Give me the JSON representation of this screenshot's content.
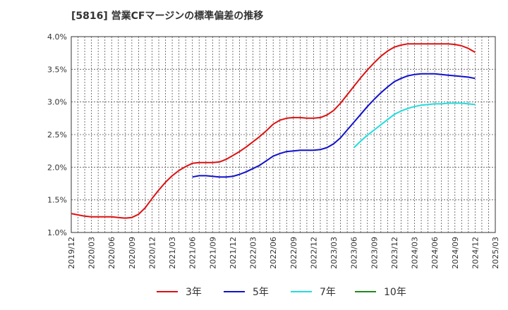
{
  "title": "[5816]  営業CFマージンの標準偏差の推移",
  "chart_data": {
    "type": "line",
    "title": "[5816]  営業CFマージンの標準偏差の推移",
    "xlabel": "",
    "ylabel": "",
    "ylim": [
      1.0,
      4.0
    ],
    "y_ticks": [
      "1.0%",
      "1.5%",
      "2.0%",
      "2.5%",
      "3.0%",
      "3.5%",
      "4.0%"
    ],
    "x_ticks": [
      "2019/12",
      "2020/03",
      "2020/06",
      "2020/09",
      "2020/12",
      "2021/03",
      "2021/06",
      "2021/09",
      "2021/12",
      "2022/03",
      "2022/06",
      "2022/09",
      "2022/12",
      "2023/03",
      "2023/06",
      "2023/09",
      "2023/12",
      "2024/03",
      "2024/06",
      "2024/09",
      "2024/12",
      "2025/03"
    ],
    "grid": true,
    "legend_position": "bottom",
    "series": [
      {
        "name": "3年",
        "color": "#dd1111",
        "x": [
          "2019/12",
          "2020/01",
          "2020/02",
          "2020/03",
          "2020/04",
          "2020/05",
          "2020/06",
          "2020/07",
          "2020/08",
          "2020/09",
          "2020/10",
          "2020/11",
          "2020/12",
          "2021/01",
          "2021/02",
          "2021/03",
          "2021/04",
          "2021/05",
          "2021/06",
          "2021/07",
          "2021/08",
          "2021/09",
          "2021/10",
          "2021/11",
          "2021/12",
          "2022/01",
          "2022/02",
          "2022/03",
          "2022/04",
          "2022/05",
          "2022/06",
          "2022/07",
          "2022/08",
          "2022/09",
          "2022/10",
          "2022/11",
          "2022/12",
          "2023/01",
          "2023/02",
          "2023/03",
          "2023/04",
          "2023/05",
          "2023/06",
          "2023/07",
          "2023/08",
          "2023/09",
          "2023/10",
          "2023/11",
          "2023/12",
          "2024/01",
          "2024/02",
          "2024/03",
          "2024/04",
          "2024/05",
          "2024/06",
          "2024/07",
          "2024/08",
          "2024/09",
          "2024/10",
          "2024/11",
          "2024/12"
        ],
        "values": [
          1.29,
          1.27,
          1.25,
          1.24,
          1.24,
          1.24,
          1.24,
          1.23,
          1.22,
          1.23,
          1.28,
          1.38,
          1.52,
          1.65,
          1.77,
          1.87,
          1.95,
          2.01,
          2.06,
          2.07,
          2.07,
          2.07,
          2.08,
          2.12,
          2.18,
          2.24,
          2.31,
          2.39,
          2.47,
          2.56,
          2.66,
          2.72,
          2.75,
          2.76,
          2.76,
          2.75,
          2.75,
          2.76,
          2.8,
          2.87,
          2.98,
          3.11,
          3.24,
          3.37,
          3.49,
          3.6,
          3.7,
          3.78,
          3.84,
          3.87,
          3.89,
          3.89,
          3.89,
          3.89,
          3.89,
          3.89,
          3.89,
          3.88,
          3.86,
          3.82,
          3.76
        ]
      },
      {
        "name": "5年",
        "color": "#1111cc",
        "x": [
          "2021/06",
          "2021/07",
          "2021/08",
          "2021/09",
          "2021/10",
          "2021/11",
          "2021/12",
          "2022/01",
          "2022/02",
          "2022/03",
          "2022/04",
          "2022/05",
          "2022/06",
          "2022/07",
          "2022/08",
          "2022/09",
          "2022/10",
          "2022/11",
          "2022/12",
          "2023/01",
          "2023/02",
          "2023/03",
          "2023/04",
          "2023/05",
          "2023/06",
          "2023/07",
          "2023/08",
          "2023/09",
          "2023/10",
          "2023/11",
          "2023/12",
          "2024/01",
          "2024/02",
          "2024/03",
          "2024/04",
          "2024/05",
          "2024/06",
          "2024/07",
          "2024/08",
          "2024/09",
          "2024/10",
          "2024/11",
          "2024/12"
        ],
        "values": [
          1.85,
          1.87,
          1.87,
          1.86,
          1.85,
          1.85,
          1.86,
          1.89,
          1.93,
          1.98,
          2.03,
          2.1,
          2.17,
          2.21,
          2.24,
          2.25,
          2.26,
          2.26,
          2.26,
          2.27,
          2.3,
          2.36,
          2.45,
          2.57,
          2.69,
          2.81,
          2.93,
          3.04,
          3.14,
          3.23,
          3.31,
          3.36,
          3.4,
          3.42,
          3.43,
          3.43,
          3.43,
          3.42,
          3.41,
          3.4,
          3.39,
          3.38,
          3.36
        ]
      },
      {
        "name": "7年",
        "color": "#22dddd",
        "x": [
          "2023/06",
          "2023/07",
          "2023/08",
          "2023/09",
          "2023/10",
          "2023/11",
          "2023/12",
          "2024/01",
          "2024/02",
          "2024/03",
          "2024/04",
          "2024/05",
          "2024/06",
          "2024/07",
          "2024/08",
          "2024/09",
          "2024/10",
          "2024/11",
          "2024/12"
        ],
        "values": [
          2.3,
          2.4,
          2.49,
          2.57,
          2.65,
          2.73,
          2.81,
          2.86,
          2.9,
          2.93,
          2.95,
          2.96,
          2.97,
          2.97,
          2.98,
          2.98,
          2.98,
          2.97,
          2.96
        ]
      },
      {
        "name": "10年",
        "color": "#228822",
        "x": [],
        "values": []
      }
    ]
  }
}
